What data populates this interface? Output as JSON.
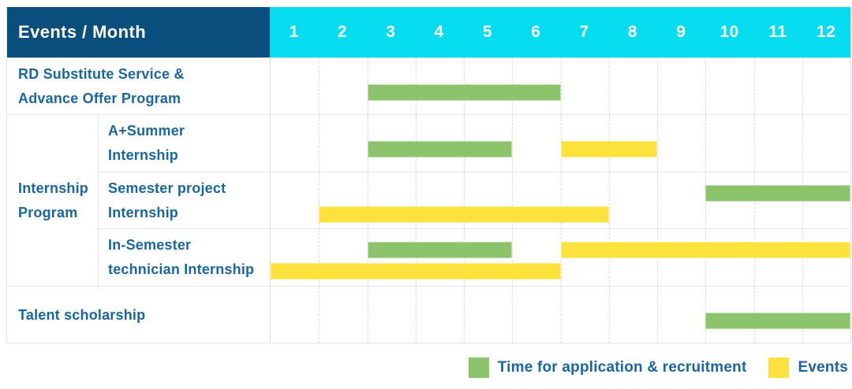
{
  "header": {
    "title": "Events / Month",
    "months": [
      "1",
      "2",
      "3",
      "4",
      "5",
      "6",
      "7",
      "8",
      "9",
      "10",
      "11",
      "12"
    ]
  },
  "colors": {
    "header_bg": "#0a4e7e",
    "months_bg": "#06dcf0",
    "application_green": "#8bc46a",
    "events_yellow": "#fde23e",
    "label_text": "#1a66a5"
  },
  "chart_data": {
    "type": "bar",
    "variant": "gantt",
    "title": "Events / Month",
    "x_axis": {
      "label": "Month",
      "ticks": [
        1,
        2,
        3,
        4,
        5,
        6,
        7,
        8,
        9,
        10,
        11,
        12
      ],
      "range": [
        1,
        12
      ]
    },
    "grid": "dashed-vertical-month-lines",
    "legend_position": "bottom-right",
    "legend": [
      {
        "name": "Time for application & recruitment",
        "color": "#8bc46a"
      },
      {
        "name": "Events",
        "color": "#fde23e"
      }
    ],
    "rows": [
      {
        "group": "",
        "label": "RD Substitute Service & Advance Offer Program",
        "label_lines": [
          "RD Substitute Service &",
          "Advance Offer Program"
        ],
        "bands": 1,
        "bars": [
          {
            "series": "Time for application & recruitment",
            "start_month": 3,
            "end_month": 6,
            "band": 1
          }
        ]
      },
      {
        "group": "Internship Program",
        "group_lines": [
          "Internship",
          "Program"
        ],
        "label": "A+Summer Internship",
        "label_lines": [
          "A+Summer",
          "Internship"
        ],
        "bands": 1,
        "bars": [
          {
            "series": "Time for application & recruitment",
            "start_month": 3,
            "end_month": 5,
            "band": 1
          },
          {
            "series": "Events",
            "start_month": 7,
            "end_month": 8,
            "band": 1
          }
        ]
      },
      {
        "group": "Internship Program",
        "label": "Semester project Internship",
        "label_lines": [
          "Semester project",
          "Internship"
        ],
        "bands": 2,
        "bars": [
          {
            "series": "Time for application & recruitment",
            "start_month": 10,
            "end_month": 12,
            "band": 1
          },
          {
            "series": "Events",
            "start_month": 2,
            "end_month": 7,
            "band": 2
          }
        ]
      },
      {
        "group": "Internship Program",
        "label": "In-Semester technician Internship",
        "label_lines": [
          "In-Semester",
          "technician Internship"
        ],
        "bands": 2,
        "bars": [
          {
            "series": "Time for application & recruitment",
            "start_month": 3,
            "end_month": 5,
            "band": 1
          },
          {
            "series": "Events",
            "start_month": 7,
            "end_month": 12,
            "band": 1
          },
          {
            "series": "Events",
            "start_month": 1,
            "end_month": 6,
            "band": 2
          }
        ]
      },
      {
        "group": "",
        "label": "Talent scholarship",
        "label_lines": [
          "Talent scholarship"
        ],
        "bands": 1,
        "bars": [
          {
            "series": "Time for application & recruitment",
            "start_month": 10,
            "end_month": 12,
            "band": 1
          }
        ]
      }
    ]
  }
}
